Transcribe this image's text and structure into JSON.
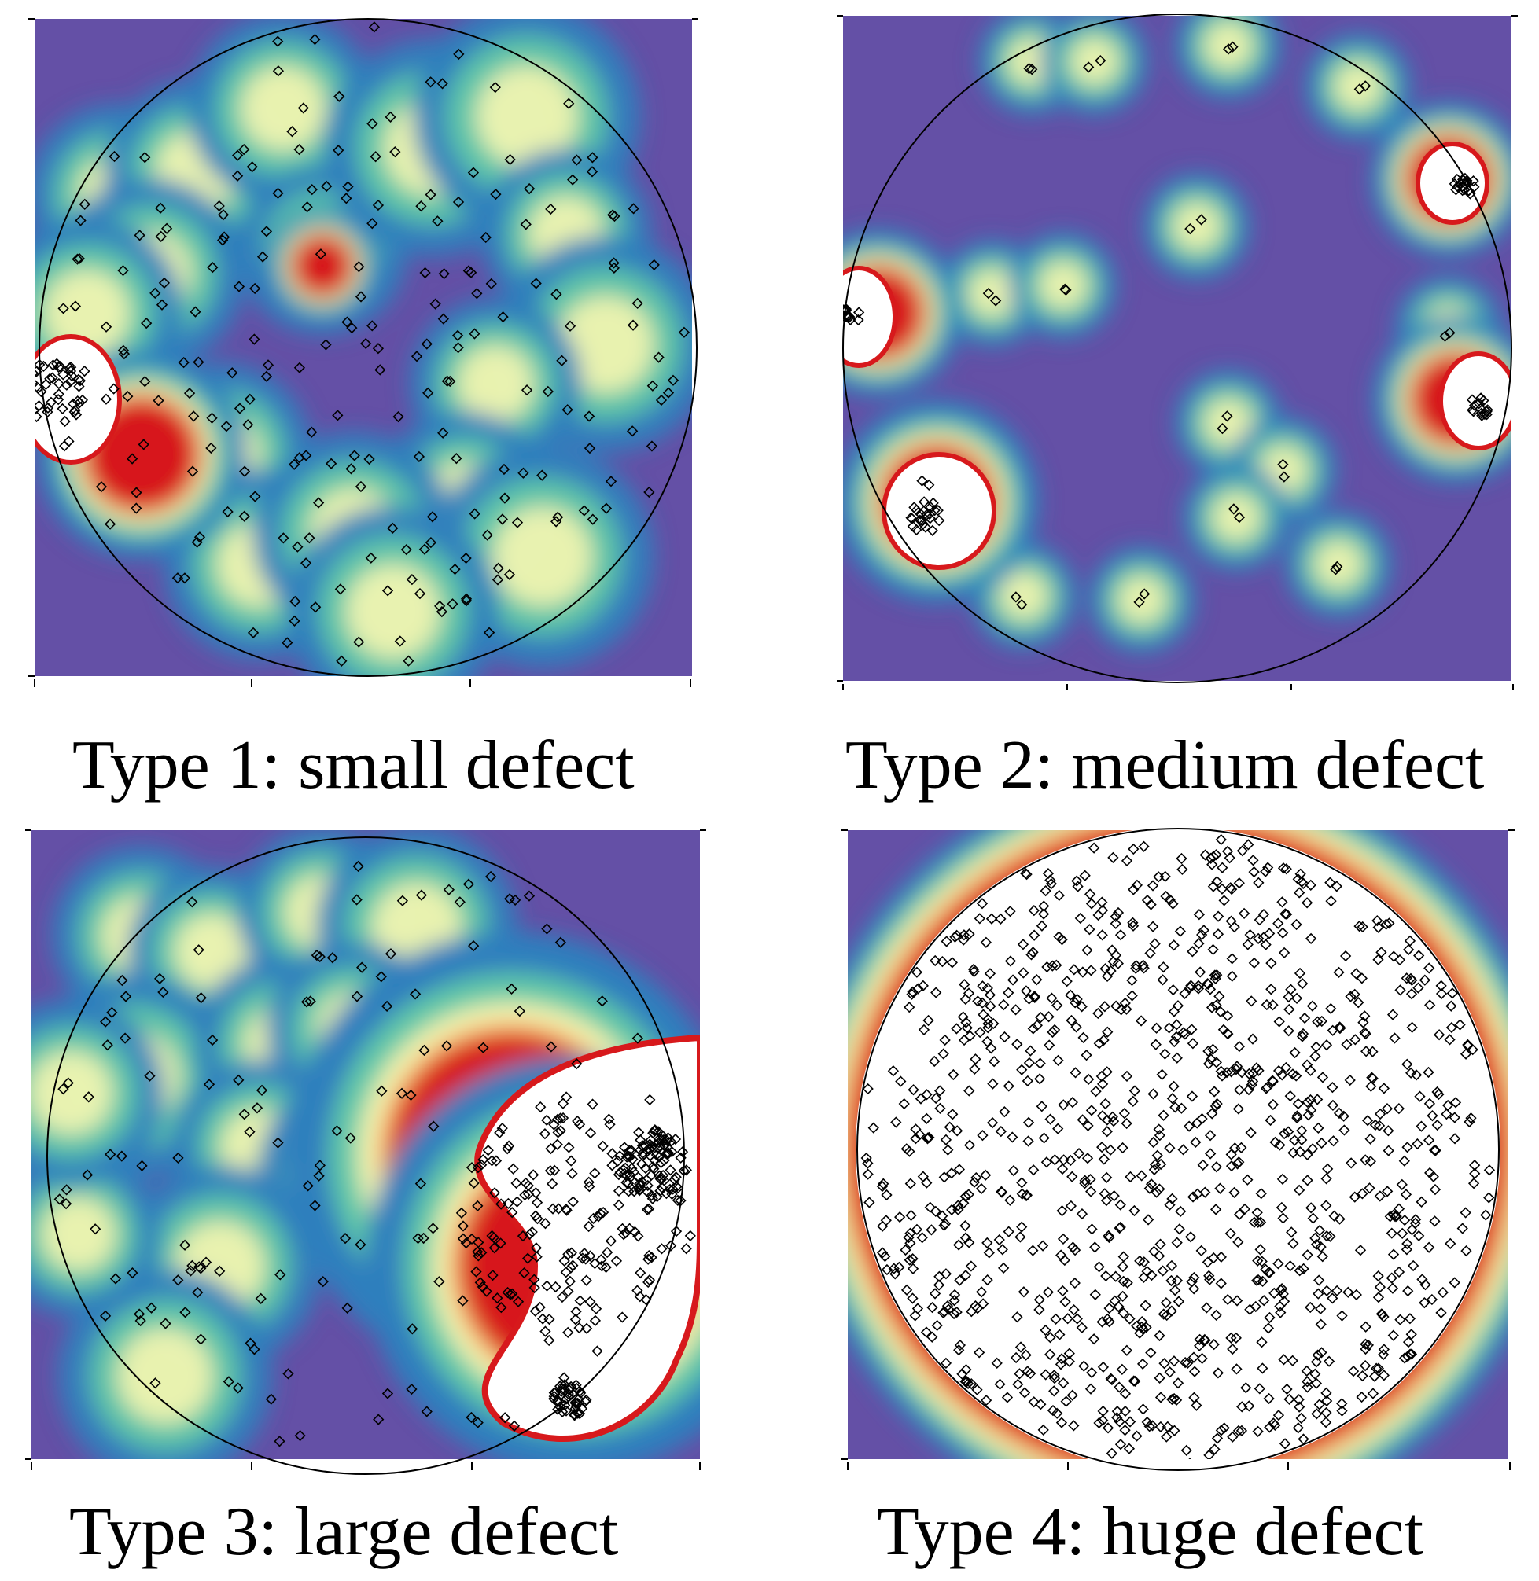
{
  "figure": {
    "panels": [
      {
        "id": "p1",
        "caption": "Type 1: small defect"
      },
      {
        "id": "p2",
        "caption": "Type 2: medium defect"
      },
      {
        "id": "p3",
        "caption": "Type 3: large defect"
      },
      {
        "id": "p4",
        "caption": "Type 4: huge defect"
      }
    ]
  },
  "colors": {
    "background_purple": "#6450a6",
    "low_density": "#2f7fbd",
    "mid_density": "#5ec8a7",
    "high_density": "#f7f7b0",
    "very_high_density": "#f08a3a",
    "peak_density": "#d7191c",
    "saturated": "#ffffff",
    "marker_stroke": "#000000"
  }
}
